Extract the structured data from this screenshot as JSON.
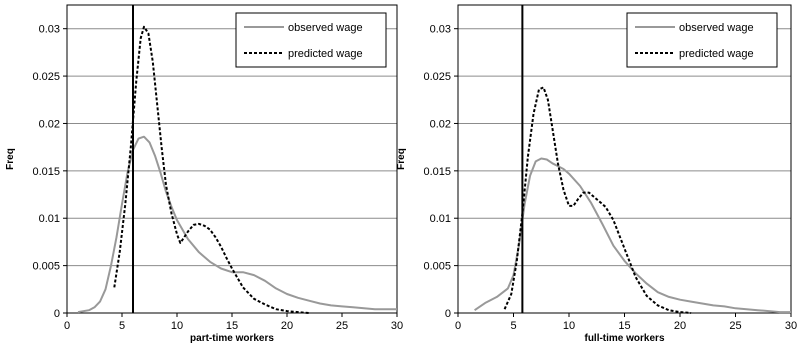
{
  "chart_data": [
    {
      "type": "line",
      "xlabel": "part-time workers",
      "ylabel": "Freq",
      "xlim": [
        0,
        30
      ],
      "ylim": [
        0,
        0.0325
      ],
      "xticks": [
        0,
        5,
        10,
        15,
        20,
        25,
        30
      ],
      "yticks": [
        "0",
        "0.005",
        "0.01",
        "0.015",
        "0.02",
        "0.025",
        "0.03"
      ],
      "ytick_values": [
        0,
        0.005,
        0.01,
        0.015,
        0.02,
        0.025,
        0.03
      ],
      "grid": "horizontal",
      "legend_position": "top-right",
      "vline": 6,
      "series": [
        {
          "name": "observed wage",
          "style": "solid",
          "color": "#999999",
          "x": [
            1,
            2,
            2.5,
            3,
            3.5,
            4,
            4.5,
            5,
            5.5,
            6,
            6.5,
            7,
            7.5,
            8,
            8.5,
            9,
            9.5,
            10,
            10.5,
            11,
            12,
            13,
            14,
            15,
            16,
            17,
            18,
            19,
            20,
            21,
            22,
            23,
            24,
            25,
            26,
            27,
            28,
            29,
            30
          ],
          "y": [
            0.0001,
            0.0003,
            0.0006,
            0.0012,
            0.0025,
            0.005,
            0.008,
            0.0115,
            0.0148,
            0.0172,
            0.0184,
            0.0186,
            0.018,
            0.0166,
            0.0148,
            0.0128,
            0.0112,
            0.0098,
            0.0088,
            0.0078,
            0.0064,
            0.0054,
            0.0047,
            0.0043,
            0.0043,
            0.004,
            0.0034,
            0.0026,
            0.002,
            0.0016,
            0.0013,
            0.001,
            0.0008,
            0.0007,
            0.0006,
            0.0005,
            0.0004,
            0.0004,
            0.0004
          ]
        },
        {
          "name": "predicted wage",
          "style": "dashed",
          "color": "#000000",
          "x": [
            4.3,
            4.8,
            5.3,
            5.8,
            6.3,
            6.7,
            7,
            7.4,
            7.8,
            8.2,
            8.6,
            9,
            9.5,
            10,
            10.3,
            10.6,
            11,
            11.5,
            12,
            12.5,
            13,
            13.5,
            14,
            14.5,
            15,
            16,
            17,
            18,
            19,
            20,
            21,
            22
          ],
          "y": [
            0.0027,
            0.0065,
            0.0115,
            0.0175,
            0.0245,
            0.029,
            0.0302,
            0.0295,
            0.0265,
            0.022,
            0.0175,
            0.0135,
            0.0105,
            0.0083,
            0.0074,
            0.0079,
            0.0086,
            0.0093,
            0.0094,
            0.0092,
            0.0088,
            0.008,
            0.007,
            0.0058,
            0.0047,
            0.0027,
            0.0015,
            0.0009,
            0.0004,
            0.0002,
            0.0001,
            0
          ]
        }
      ]
    },
    {
      "type": "line",
      "xlabel": "full-time workers",
      "ylabel": "Freq",
      "xlim": [
        0,
        30
      ],
      "ylim": [
        0,
        0.0325
      ],
      "xticks": [
        0,
        5,
        10,
        15,
        20,
        25,
        30
      ],
      "yticks": [
        "0",
        "0.005",
        "0.01",
        "0.015",
        "0.02",
        "0.025",
        "0.03"
      ],
      "ytick_values": [
        0,
        0.005,
        0.01,
        0.015,
        0.02,
        0.025,
        0.03
      ],
      "grid": "horizontal",
      "legend_position": "top-right",
      "vline": 5.8,
      "series": [
        {
          "name": "observed wage",
          "style": "solid",
          "color": "#999999",
          "x": [
            1.5,
            2.5,
            3.5,
            4.5,
            5,
            5.5,
            6,
            6.5,
            7,
            7.5,
            8,
            8.5,
            9,
            9.5,
            10,
            11,
            12,
            13,
            14,
            15,
            16,
            17,
            18,
            19,
            20,
            21,
            22,
            23,
            24,
            25,
            26,
            27,
            28,
            29,
            30
          ],
          "y": [
            0.0003,
            0.0011,
            0.0017,
            0.0026,
            0.004,
            0.0072,
            0.0115,
            0.0145,
            0.016,
            0.0163,
            0.0162,
            0.0158,
            0.0155,
            0.0152,
            0.0147,
            0.0134,
            0.0116,
            0.0094,
            0.0071,
            0.0055,
            0.0042,
            0.0031,
            0.0022,
            0.0017,
            0.0014,
            0.0012,
            0.001,
            0.0008,
            0.0007,
            0.0005,
            0.0004,
            0.0003,
            0.0002,
            0.0001,
            0.0001
          ]
        },
        {
          "name": "predicted wage",
          "style": "dashed",
          "color": "#000000",
          "x": [
            4.2,
            4.8,
            5.3,
            5.8,
            6.3,
            6.8,
            7.3,
            7.7,
            8.1,
            8.5,
            9,
            9.5,
            10,
            10.4,
            10.8,
            11.3,
            11.8,
            12.3,
            12.8,
            13.3,
            14,
            15,
            16,
            17,
            18,
            19,
            20,
            21
          ],
          "y": [
            0.0004,
            0.002,
            0.0055,
            0.0105,
            0.0165,
            0.021,
            0.0236,
            0.0238,
            0.0225,
            0.0195,
            0.0158,
            0.013,
            0.0113,
            0.0113,
            0.012,
            0.0127,
            0.0127,
            0.0122,
            0.0117,
            0.0112,
            0.0098,
            0.0068,
            0.0038,
            0.0018,
            0.0008,
            0.0003,
            0.0001,
            0
          ]
        }
      ]
    }
  ]
}
